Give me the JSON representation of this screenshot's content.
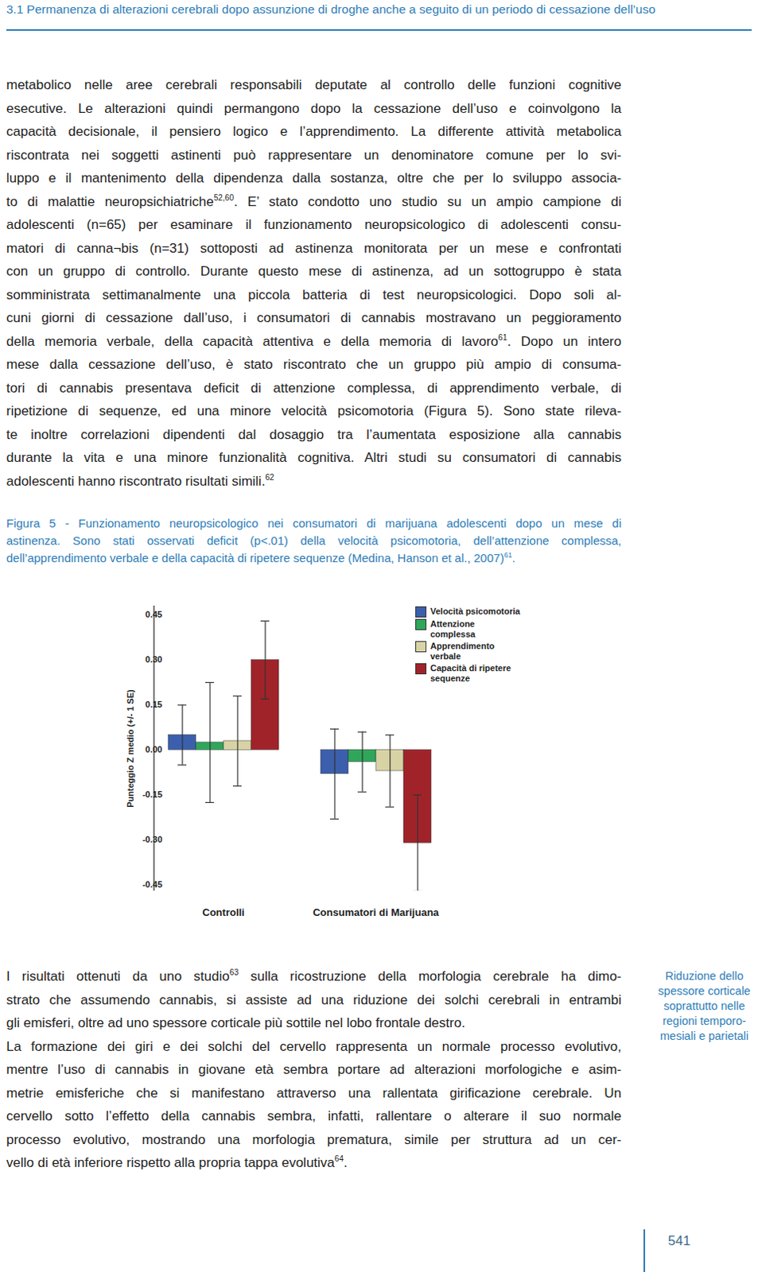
{
  "header": "3.1 Permanenza di alterazioni cerebrali dopo assunzione di droghe anche a seguito di un periodo di cessazione dell’uso",
  "paragraphs_before": [
    [
      [
        "metabolico nelle aree cerebrali responsabili deputate al controllo delle funzioni cognitive"
      ],
      [
        "esecutive. Le alterazioni quindi permangono dopo la cessazione dell’uso e coinvolgono la"
      ],
      [
        "capacità decisionale, il pensiero logico e l’apprendimento. La differente attività metabolica"
      ],
      [
        "riscontrata nei soggetti astinenti può rappresentare un denominatore comune per lo svi-"
      ],
      [
        "luppo e il mantenimento della dipendenza dalla sostanza, oltre che per lo sviluppo associa-"
      ],
      [
        "to di malattie neuropsichiatriche",
        {
          "sup": "52,60"
        },
        ". E’ stato condotto uno studio su un ampio campione di"
      ],
      [
        "adolescenti (n=65) per esaminare il funzionamento neuropsicologico di adolescenti consu-"
      ],
      [
        "matori di canna¬bis (n=31) sottoposti ad astinenza monitorata per un mese e confrontati"
      ],
      [
        "con un gruppo di controllo. Durante questo mese di astinenza, ad un sottogruppo è stata"
      ],
      [
        "somministrata settimanalmente una piccola batteria di test neuropsicologici. Dopo soli al-"
      ],
      [
        "cuni giorni di cessazione dall’uso, i consumatori di cannabis mostravano un peggioramento"
      ],
      [
        "della memoria verbale, della capacità attentiva e della memoria di lavoro",
        {
          "sup": "61"
        },
        ". Dopo un intero"
      ],
      [
        "mese dalla cessazione dell’uso, è stato riscontrato che un gruppo più ampio di consuma-"
      ],
      [
        "tori di cannabis presentava deficit di attenzione complessa, di apprendimento verbale, di"
      ],
      [
        "ripetizione di sequenze, ed una minore velocità psicomotoria (Figura 5). Sono state rileva-"
      ],
      [
        "te inoltre correlazioni dipendenti dal dosaggio tra l’aumentata esposizione alla cannabis"
      ],
      [
        "durante la vita e una minore funzionalità cognitiva. Altri studi su consumatori di cannabis"
      ],
      [
        "adolescenti hanno riscontrato risultati simili.",
        {
          "sup": "62"
        }
      ]
    ]
  ],
  "figure_caption": [
    [
      "Figura 5 - Funzionamento neuropsicologico nei consumatori di marijuana adolescenti dopo un mese di"
    ],
    [
      "astinenza. Sono stati osservati deficit (p<.01) della velocità psicomotoria, dell’attenzione complessa,"
    ],
    [
      "dell’apprendimento verbale e della capacità di ripetere sequenze (Medina, Hanson et al., 2007)",
      {
        "sup": "61"
      },
      "."
    ]
  ],
  "chart_data": {
    "type": "bar",
    "y_label": "Punteggio Z medio (+/- 1 SE)",
    "categories": [
      "Controlli",
      "Consumatori di Marijuana"
    ],
    "series": [
      {
        "name": "Velocità psicomotoria",
        "color": "#3b5fad",
        "values": [
          0.05,
          -0.08
        ],
        "se": [
          0.1,
          0.15
        ]
      },
      {
        "name": "Attenzione complessa",
        "color": "#2fa65a",
        "values": [
          0.025,
          -0.04
        ],
        "se": [
          0.2,
          0.1
        ]
      },
      {
        "name": "Apprendimento verbale",
        "color": "#d8d3a5",
        "values": [
          0.03,
          -0.07
        ],
        "se": [
          0.15,
          0.12
        ]
      },
      {
        "name": "Capacità di ripetere sequenze",
        "color": "#a1232a",
        "values": [
          0.3,
          -0.31
        ],
        "se": [
          0.13,
          0.16
        ]
      }
    ],
    "ylim": [
      -0.47,
      0.48
    ],
    "yticks": [
      -0.45,
      {
        "value": -0.3,
        "label": "-0.30"
      },
      -0.15,
      {
        "value": 0,
        "label": "0.00"
      },
      0.15,
      {
        "value": 0.3,
        "label": "0.30"
      },
      0.45
    ],
    "legend": "top-right"
  },
  "paragraphs_after": [
    [
      [
        "I risultati ottenuti da uno studio",
        {
          "sup": "63"
        },
        " sulla ricostruzione della morfologia cerebrale ha dimo-"
      ],
      [
        "strato che assumendo cannabis, si assiste ad una riduzione dei solchi cerebrali in entrambi"
      ],
      [
        "gli emisferi, oltre ad uno spessore corticale più sottile nel lobo frontale destro."
      ]
    ],
    [
      [
        "La formazione dei giri e dei solchi del cervello rappresenta un normale processo evolutivo,"
      ],
      [
        "mentre l’uso di cannabis in giovane età sembra portare ad alterazioni morfologiche e asim-"
      ],
      [
        "metrie emisferiche che si manifestano attraverso una rallentata girificazione cerebrale. Un"
      ],
      [
        "cervello sotto l’effetto della cannabis sembra, infatti, rallentare o alterare il suo normale"
      ],
      [
        "processo evolutivo, mostrando una morfologia prematura, simile per struttura ad un cer-"
      ],
      [
        "vello di età inferiore rispetto alla propria tappa evolutiva",
        {
          "sup": "64"
        },
        "."
      ]
    ]
  ],
  "sidenote": [
    "Riduzione dello",
    "spessore corticale",
    "soprattutto nelle",
    "regioni temporo-",
    "mesiali e parietali"
  ],
  "page_number": 541
}
